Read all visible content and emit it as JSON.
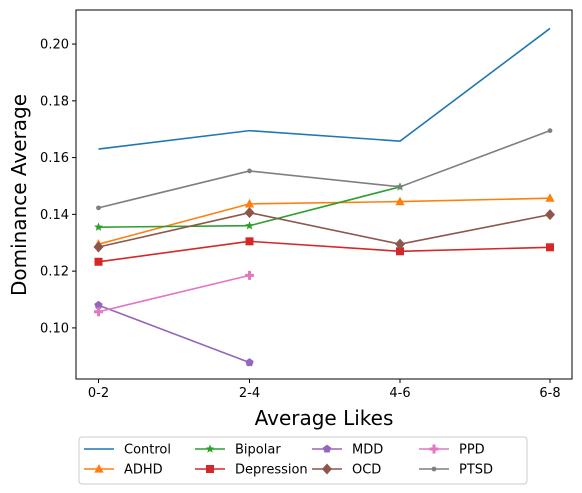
{
  "chart_data": {
    "type": "line",
    "title": "",
    "xlabel": "Average Likes",
    "ylabel": "Dominance Average",
    "categories": [
      "0-2",
      "2-4",
      "4-6",
      "6-8"
    ],
    "ylim": [
      0.082,
      0.212
    ],
    "yticks": [
      "0.10",
      "0.12",
      "0.14",
      "0.16",
      "0.18",
      "0.20"
    ],
    "grid": false,
    "legend_position": "bottom",
    "series": [
      {
        "name": "Control",
        "color": "#1f77b4",
        "marker": "none",
        "values": [
          0.163,
          0.1695,
          0.1658,
          0.2055
        ]
      },
      {
        "name": "ADHD",
        "color": "#ff7f0e",
        "marker": "triangle",
        "values": [
          0.1295,
          0.1437,
          0.1445,
          0.1457
        ]
      },
      {
        "name": "Bipolar",
        "color": "#2ca02c",
        "marker": "star",
        "values": [
          0.1355,
          0.136,
          0.1497,
          null
        ]
      },
      {
        "name": "Depression",
        "color": "#d62728",
        "marker": "square",
        "values": [
          0.1233,
          0.1305,
          0.127,
          0.1284
        ]
      },
      {
        "name": "MDD",
        "color": "#9467bd",
        "marker": "pentagon",
        "values": [
          0.108,
          0.0878,
          null,
          null
        ]
      },
      {
        "name": "OCD",
        "color": "#8c564b",
        "marker": "diamond",
        "values": [
          0.1285,
          0.1406,
          0.1295,
          0.1399
        ]
      },
      {
        "name": "PPD",
        "color": "#e377c2",
        "marker": "plus",
        "values": [
          0.1057,
          0.1185,
          null,
          null
        ]
      },
      {
        "name": "PTSD",
        "color": "#7f7f7f",
        "marker": "dot",
        "values": [
          0.1423,
          0.1553,
          0.1497,
          0.1695
        ]
      }
    ]
  }
}
